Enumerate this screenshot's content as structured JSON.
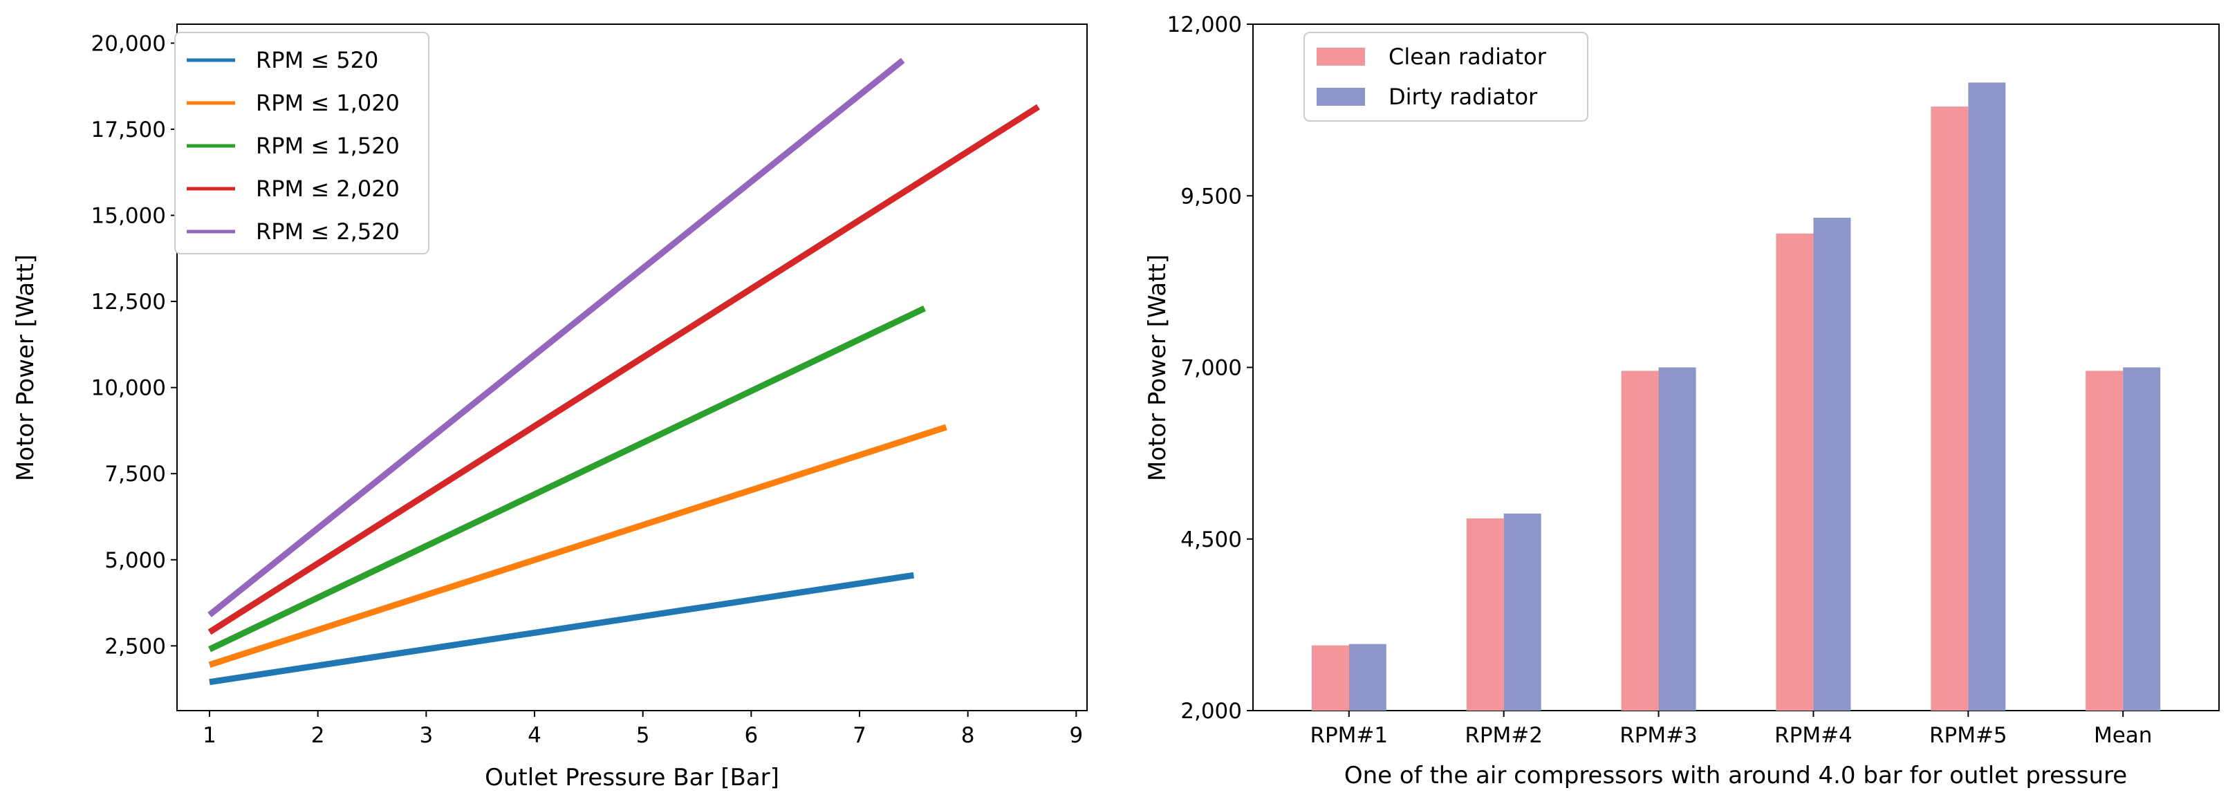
{
  "chart_data": [
    {
      "type": "line",
      "xlabel": "Outlet Pressure Bar [Bar]",
      "ylabel": "Motor Power [Watt]",
      "xlim": [
        0.7,
        9.1
      ],
      "ylim": [
        620,
        20550
      ],
      "xticks": [
        1,
        2,
        3,
        4,
        5,
        6,
        7,
        8,
        9
      ],
      "xtick_labels": [
        "1",
        "2",
        "3",
        "4",
        "5",
        "6",
        "7",
        "8",
        "9"
      ],
      "yticks": [
        2500,
        5000,
        7500,
        10000,
        12500,
        15000,
        17500,
        20000
      ],
      "ytick_labels": [
        "2,500",
        "5,000",
        "7,500",
        "10,000",
        "12,500",
        "15,000",
        "17,500",
        "20,000"
      ],
      "legend_position": "top-left",
      "series": [
        {
          "name": "RPM ≤ 520",
          "color": "#1f77b4",
          "x": [
            1.0,
            7.5
          ],
          "y": [
            1450,
            4550
          ]
        },
        {
          "name": "RPM ≤ 1,020",
          "color": "#ff7f0e",
          "x": [
            1.0,
            7.8
          ],
          "y": [
            1950,
            8850
          ]
        },
        {
          "name": "RPM ≤ 1,520",
          "color": "#2ca02c",
          "x": [
            1.0,
            7.6
          ],
          "y": [
            2400,
            12300
          ]
        },
        {
          "name": "RPM ≤ 2,020",
          "color": "#d62728",
          "x": [
            1.0,
            8.65
          ],
          "y": [
            2900,
            18150
          ]
        },
        {
          "name": "RPM ≤ 2,520",
          "color": "#9467bd",
          "x": [
            1.0,
            7.4
          ],
          "y": [
            3400,
            19500
          ]
        }
      ]
    },
    {
      "type": "bar",
      "xlabel": "One of the air compressors with around 4.0 bar for outlet pressure",
      "ylabel": "Motor Power [Watt]",
      "ylim": [
        2000,
        12000
      ],
      "yticks": [
        2000,
        4500,
        7000,
        9500,
        12000
      ],
      "ytick_labels": [
        "2,000",
        "4,500",
        "7,000",
        "9,500",
        "12,000"
      ],
      "categories": [
        "RPM#1",
        "RPM#2",
        "RPM#3",
        "RPM#4",
        "RPM#5",
        "Mean"
      ],
      "legend_position": "top-left",
      "series": [
        {
          "name": "Clean radiator",
          "color": "#f4959c",
          "values": [
            2950,
            4800,
            6950,
            8950,
            10800,
            6950
          ]
        },
        {
          "name": "Dirty radiator",
          "color": "#8c96c8",
          "values": [
            2970,
            4870,
            7000,
            9180,
            11150,
            7000
          ]
        }
      ]
    }
  ]
}
